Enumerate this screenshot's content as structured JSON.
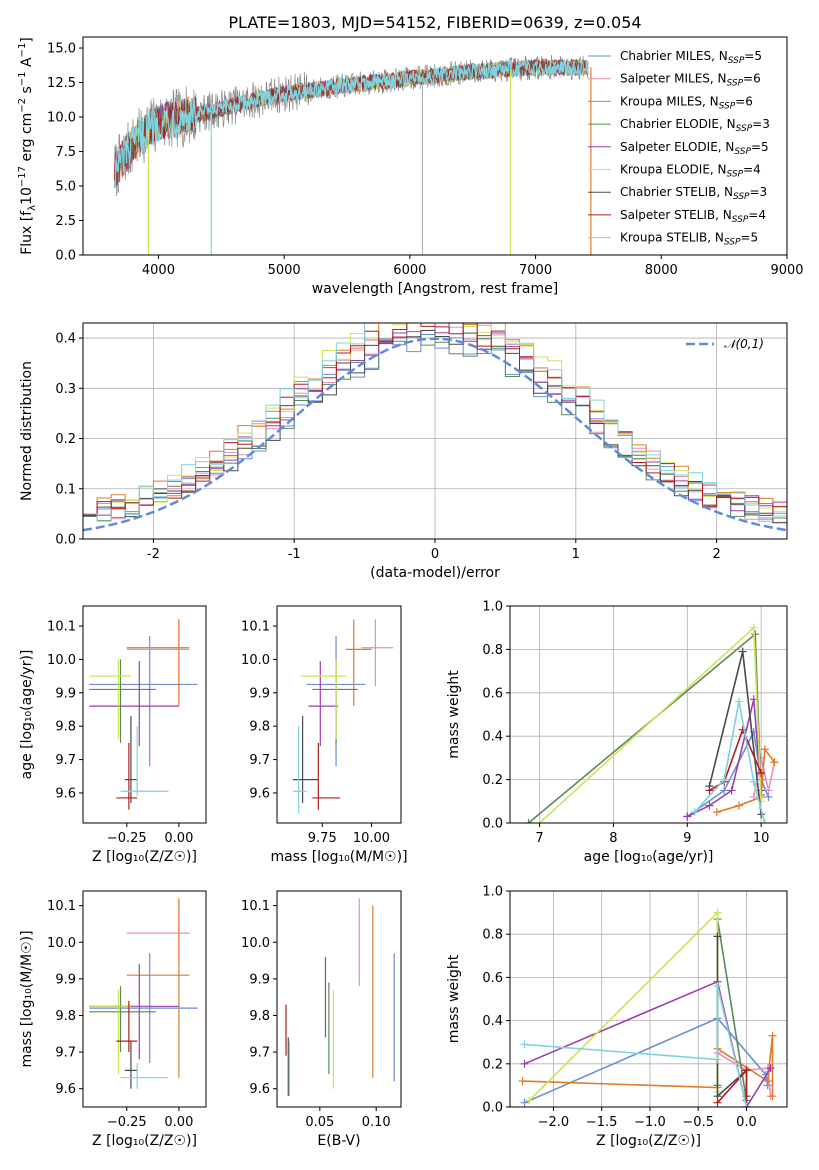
{
  "figure": {
    "title": "PLATE=1803, MJD=54152, FIBERID=0639, z=0.054"
  },
  "models": [
    {
      "name": "Chabrier MILES, N",
      "sub": "SSP",
      "n": "=5",
      "color": "#6b8ed6"
    },
    {
      "name": "Salpeter MILES, N",
      "sub": "SSP",
      "n": "=6",
      "color": "#e58fbf"
    },
    {
      "name": "Kroupa MILES, N",
      "sub": "SSP",
      "n": "=6",
      "color": "#e07b2a"
    },
    {
      "name": "Chabrier ELODIE, N",
      "sub": "SSP",
      "n": "=3",
      "color": "#5a8a5a"
    },
    {
      "name": "Salpeter ELODIE, N",
      "sub": "SSP",
      "n": "=5",
      "color": "#9a3fb0"
    },
    {
      "name": "Kroupa ELODIE, N",
      "sub": "SSP",
      "n": "=4",
      "color": "#cfe35a"
    },
    {
      "name": "Chabrier STELIB, N",
      "sub": "SSP",
      "n": "=3",
      "color": "#4a4a4a"
    },
    {
      "name": "Salpeter STELIB, N",
      "sub": "SSP",
      "n": "=4",
      "color": "#b01e1e"
    },
    {
      "name": "Kroupa STELIB, N",
      "sub": "SSP",
      "n": "=5",
      "color": "#7fd3de"
    }
  ],
  "chart_data": [
    {
      "id": "spectrum",
      "type": "line",
      "title": "PLATE=1803, MJD=54152, FIBERID=0639, z=0.054",
      "xlabel": "wavelength [Angstrom, rest frame]",
      "ylabel_parts": [
        "Flux [f",
        "λ",
        "10",
        "−17",
        " erg cm",
        "−2",
        " s",
        "−1",
        " A",
        "−1",
        "]"
      ],
      "xlim": [
        3400,
        9000
      ],
      "ylim": [
        0,
        15.8
      ],
      "xticks": [
        4000,
        5000,
        6000,
        7000,
        8000,
        9000
      ],
      "yticks": [
        0.0,
        2.5,
        5.0,
        7.5,
        10.0,
        12.5,
        15.0
      ],
      "ytick_labels": [
        "0.0",
        "2.5",
        "5.0",
        "7.5",
        "10.0",
        "12.5",
        "15.0"
      ],
      "continuum": [
        [
          3650,
          6.0
        ],
        [
          3700,
          6.8
        ],
        [
          3800,
          8.0
        ],
        [
          3900,
          9.0
        ],
        [
          4000,
          9.6
        ],
        [
          4200,
          10.0
        ],
        [
          4500,
          10.6
        ],
        [
          4800,
          11.3
        ],
        [
          5000,
          11.7
        ],
        [
          5500,
          12.3
        ],
        [
          6000,
          12.8
        ],
        [
          6500,
          13.3
        ],
        [
          7000,
          13.6
        ],
        [
          7400,
          13.6
        ]
      ],
      "spikes": [
        [
          3920,
          0.0
        ],
        [
          4420,
          0.0
        ],
        [
          6800,
          0.0
        ],
        [
          7440,
          0.0
        ]
      ],
      "legend_loc": "upper right",
      "grid": false
    },
    {
      "id": "residuals",
      "type": "histogram",
      "xlabel": "(data-model)/error",
      "ylabel": "Normed distribution",
      "xlim": [
        -2.5,
        2.5
      ],
      "ylim": [
        0,
        0.43
      ],
      "xticks": [
        -2,
        -1,
        0,
        1,
        2
      ],
      "yticks": [
        0.0,
        0.1,
        0.2,
        0.3,
        0.4
      ],
      "ytick_labels": [
        "0.0",
        "0.1",
        "0.2",
        "0.3",
        "0.4"
      ],
      "bin_width": 0.1,
      "reference_curve": {
        "name": "𝒩(0,1)",
        "mu": 0,
        "sigma": 1,
        "color": "#5f8bdc"
      },
      "legend_loc": "upper right",
      "grid": true
    },
    {
      "id": "age-vs-Z",
      "type": "errorbar",
      "xlabel": "Z [log₁₀(Z/Z☉)]",
      "ylabel": "age  [log₁₀(age/yr)]",
      "xlim": [
        -0.46,
        0.13
      ],
      "ylim": [
        9.51,
        10.16
      ],
      "xticks": [
        -0.25,
        0.0
      ],
      "xtick_labels": [
        "−0.25",
        "0.00"
      ],
      "yticks": [
        9.6,
        9.7,
        9.8,
        9.9,
        10.0,
        10.1
      ],
      "ytick_labels": [
        "9.6",
        "9.7",
        "9.8",
        "9.9",
        "10.0",
        "10.1"
      ],
      "points": [
        {
          "model": 0,
          "x": -0.14,
          "xlo": -0.43,
          "xhi": 0.09,
          "y": 9.925,
          "ylo": 9.68,
          "yhi": 10.07
        },
        {
          "model": 1,
          "x": 0.0,
          "xlo": -0.25,
          "xhi": 0.05,
          "y": 10.03,
          "ylo": 9.88,
          "yhi": 10.12
        },
        {
          "model": 2,
          "x": 0.0,
          "xlo": -0.25,
          "xhi": 0.05,
          "y": 10.035,
          "ylo": 9.86,
          "yhi": 10.12
        },
        {
          "model": 3,
          "x": -0.28,
          "xlo": -0.43,
          "xhi": -0.11,
          "y": 9.91,
          "ylo": 9.75,
          "yhi": 10.0
        },
        {
          "model": 4,
          "x": -0.19,
          "xlo": -0.43,
          "xhi": 0.0,
          "y": 9.86,
          "ylo": 9.74,
          "yhi": 9.995
        },
        {
          "model": 5,
          "x": -0.29,
          "xlo": -0.43,
          "xhi": -0.23,
          "y": 9.95,
          "ylo": 9.76,
          "yhi": 10.0
        },
        {
          "model": 6,
          "x": -0.23,
          "xlo": -0.26,
          "xhi": -0.2,
          "y": 9.64,
          "ylo": 9.57,
          "yhi": 9.83
        },
        {
          "model": 7,
          "x": -0.24,
          "xlo": -0.3,
          "xhi": -0.2,
          "y": 9.585,
          "ylo": 9.55,
          "yhi": 9.75
        },
        {
          "model": 8,
          "x": -0.2,
          "xlo": -0.28,
          "xhi": -0.05,
          "y": 9.605,
          "ylo": 9.59,
          "yhi": 9.8
        }
      ]
    },
    {
      "id": "age-vs-mass",
      "type": "errorbar",
      "xlabel": "mass [log₁₀(M/M☉)]",
      "ylabel": "",
      "xlim": [
        9.52,
        10.15
      ],
      "ylim": [
        9.51,
        10.16
      ],
      "xticks": [
        9.75,
        10.0
      ],
      "xtick_labels": [
        "9.75",
        "10.00"
      ],
      "yticks": [
        9.6,
        9.7,
        9.8,
        9.9,
        10.0,
        10.1
      ],
      "ytick_labels": [
        "9.6",
        "9.7",
        "9.8",
        "9.9",
        "10.0",
        "10.1"
      ],
      "points": [
        {
          "model": 0,
          "x": 9.82,
          "xlo": 9.67,
          "xhi": 9.97,
          "y": 9.925,
          "ylo": 9.68,
          "yhi": 10.07
        },
        {
          "model": 1,
          "x": 10.02,
          "xlo": 9.95,
          "xhi": 10.11,
          "y": 10.035,
          "ylo": 9.92,
          "yhi": 10.12
        },
        {
          "model": 2,
          "x": 9.91,
          "xlo": 9.87,
          "xhi": 10.0,
          "y": 10.03,
          "ylo": 9.86,
          "yhi": 10.12
        },
        {
          "model": 3,
          "x": 9.82,
          "xlo": 9.7,
          "xhi": 9.93,
          "y": 9.91,
          "ylo": 9.75,
          "yhi": 10.0
        },
        {
          "model": 4,
          "x": 9.74,
          "xlo": 9.68,
          "xhi": 9.83,
          "y": 9.86,
          "ylo": 9.74,
          "yhi": 9.995
        },
        {
          "model": 5,
          "x": 9.82,
          "xlo": 9.64,
          "xhi": 9.87,
          "y": 9.95,
          "ylo": 9.76,
          "yhi": 10.0
        },
        {
          "model": 6,
          "x": 9.65,
          "xlo": 9.6,
          "xhi": 9.73,
          "y": 9.64,
          "ylo": 9.57,
          "yhi": 9.83
        },
        {
          "model": 7,
          "x": 9.73,
          "xlo": 9.7,
          "xhi": 9.84,
          "y": 9.585,
          "ylo": 9.55,
          "yhi": 9.75
        },
        {
          "model": 8,
          "x": 9.63,
          "xlo": 9.6,
          "xhi": 9.67,
          "y": 9.605,
          "ylo": 9.54,
          "yhi": 9.8
        }
      ]
    },
    {
      "id": "weight-vs-age",
      "type": "line",
      "xlabel": "age  [log₁₀(age/yr)]",
      "ylabel": "mass weight",
      "xlim": [
        6.6,
        10.35
      ],
      "ylim": [
        0,
        1.0
      ],
      "xticks": [
        7,
        8,
        9,
        10
      ],
      "yticks": [
        0.0,
        0.2,
        0.4,
        0.6,
        0.8,
        1.0
      ],
      "ytick_labels": [
        "0.0",
        "0.2",
        "0.4",
        "0.6",
        "0.8",
        "1.0"
      ],
      "grid": true,
      "series": [
        {
          "model": 0,
          "points": [
            [
              9.0,
              0.03
            ],
            [
              9.5,
              0.15
            ],
            [
              9.9,
              0.42
            ],
            [
              10.0,
              0.2
            ],
            [
              10.1,
              0.12
            ]
          ]
        },
        {
          "model": 1,
          "points": [
            [
              9.9,
              0.12
            ],
            [
              10.0,
              0.3
            ],
            [
              10.1,
              0.15
            ],
            [
              10.18,
              0.28
            ]
          ]
        },
        {
          "model": 2,
          "points": [
            [
              9.4,
              0.05
            ],
            [
              9.7,
              0.08
            ],
            [
              10.0,
              0.12
            ],
            [
              10.05,
              0.34
            ],
            [
              10.18,
              0.28
            ]
          ]
        },
        {
          "model": 3,
          "points": [
            [
              6.85,
              0.0
            ],
            [
              9.92,
              0.87
            ],
            [
              10.0,
              0.13
            ]
          ]
        },
        {
          "model": 4,
          "points": [
            [
              9.0,
              0.03
            ],
            [
              9.3,
              0.08
            ],
            [
              9.6,
              0.15
            ],
            [
              9.9,
              0.57
            ],
            [
              10.0,
              0.15
            ]
          ]
        },
        {
          "model": 5,
          "points": [
            [
              7.0,
              0.0
            ],
            [
              9.9,
              0.9
            ],
            [
              10.0,
              0.1
            ]
          ]
        },
        {
          "model": 6,
          "points": [
            [
              9.3,
              0.17
            ],
            [
              9.75,
              0.79
            ],
            [
              10.0,
              0.04
            ]
          ]
        },
        {
          "model": 7,
          "points": [
            [
              9.3,
              0.15
            ],
            [
              9.5,
              0.19
            ],
            [
              9.75,
              0.43
            ],
            [
              10.0,
              0.23
            ]
          ]
        },
        {
          "model": 8,
          "points": [
            [
              9.1,
              0.05
            ],
            [
              9.5,
              0.2
            ],
            [
              9.7,
              0.56
            ],
            [
              9.9,
              0.19
            ],
            [
              10.05,
              0.0
            ]
          ]
        }
      ]
    },
    {
      "id": "mass-vs-Z",
      "type": "errorbar",
      "xlabel": "Z [log₁₀(Z/Z☉)]",
      "ylabel": "mass [log₁₀(M/M☉)]",
      "xlim": [
        -0.46,
        0.13
      ],
      "ylim": [
        9.55,
        10.14
      ],
      "xticks": [
        -0.25,
        0.0
      ],
      "xtick_labels": [
        "−0.25",
        "0.00"
      ],
      "yticks": [
        9.6,
        9.7,
        9.8,
        9.9,
        10.0,
        10.1
      ],
      "ytick_labels": [
        "9.6",
        "9.7",
        "9.8",
        "9.9",
        "10.0",
        "10.1"
      ],
      "points": [
        {
          "model": 0,
          "x": -0.14,
          "xlo": -0.43,
          "xhi": 0.09,
          "y": 9.82,
          "ylo": 9.67,
          "yhi": 9.97
        },
        {
          "model": 1,
          "x": 0.0,
          "xlo": -0.25,
          "xhi": 0.05,
          "y": 10.025,
          "ylo": 9.95,
          "yhi": 10.12
        },
        {
          "model": 2,
          "x": 0.0,
          "xlo": -0.25,
          "xhi": 0.05,
          "y": 9.91,
          "ylo": 9.63,
          "yhi": 10.12
        },
        {
          "model": 3,
          "x": -0.28,
          "xlo": -0.43,
          "xhi": -0.11,
          "y": 9.81,
          "ylo": 9.7,
          "yhi": 9.88
        },
        {
          "model": 4,
          "x": -0.19,
          "xlo": -0.43,
          "xhi": 0.0,
          "y": 9.825,
          "ylo": 9.68,
          "yhi": 9.94
        },
        {
          "model": 5,
          "x": -0.29,
          "xlo": -0.43,
          "xhi": -0.23,
          "y": 9.825,
          "ylo": 9.64,
          "yhi": 9.87
        },
        {
          "model": 6,
          "x": -0.23,
          "xlo": -0.26,
          "xhi": -0.2,
          "y": 9.65,
          "ylo": 9.6,
          "yhi": 9.73
        },
        {
          "model": 7,
          "x": -0.24,
          "xlo": -0.3,
          "xhi": -0.2,
          "y": 9.73,
          "ylo": 9.7,
          "yhi": 9.84
        },
        {
          "model": 8,
          "x": -0.2,
          "xlo": -0.28,
          "xhi": -0.05,
          "y": 9.63,
          "ylo": 9.6,
          "yhi": 9.67
        }
      ]
    },
    {
      "id": "mass-vs-ebv",
      "type": "errorbar",
      "xlabel": "E(B-V)",
      "ylabel": "",
      "xlim": [
        0.012,
        0.122
      ],
      "ylim": [
        9.55,
        10.14
      ],
      "xticks": [
        0.05,
        0.1
      ],
      "xtick_labels": [
        "0.05",
        "0.10"
      ],
      "yticks": [
        9.6,
        9.7,
        9.8,
        9.9,
        10.0,
        10.1
      ],
      "ytick_labels": [
        "9.6",
        "9.7",
        "9.8",
        "9.9",
        "10.0",
        "10.1"
      ],
      "points": [
        {
          "model": 0,
          "x": 0.116,
          "y": 9.82,
          "ylo": 9.62,
          "yhi": 9.97
        },
        {
          "model": 1,
          "x": 0.085,
          "y": 10.02,
          "ylo": 9.88,
          "yhi": 10.12
        },
        {
          "model": 2,
          "x": 0.097,
          "y": 9.91,
          "ylo": 9.63,
          "yhi": 10.1
        },
        {
          "model": 3,
          "x": 0.058,
          "y": 9.8,
          "ylo": 9.64,
          "yhi": 9.89
        },
        {
          "model": 4,
          "x": 0.055,
          "y": 9.88,
          "ylo": 9.74,
          "yhi": 9.96
        },
        {
          "model": 5,
          "x": 0.062,
          "y": 9.75,
          "ylo": 9.6,
          "yhi": 9.87
        },
        {
          "model": 6,
          "x": 0.022,
          "y": 9.65,
          "ylo": 9.58,
          "yhi": 9.74
        },
        {
          "model": 7,
          "x": 0.02,
          "y": 9.75,
          "ylo": 9.69,
          "yhi": 9.83
        },
        {
          "model": 8,
          "x": 0.023,
          "y": 9.64,
          "ylo": 9.58,
          "yhi": 9.73
        }
      ]
    },
    {
      "id": "weight-vs-Z",
      "type": "line",
      "xlabel": "Z [log₁₀(Z/Z☉)]",
      "ylabel": "mass weight",
      "xlim": [
        -2.45,
        0.42
      ],
      "ylim": [
        0,
        1.0
      ],
      "xticks": [
        -2.0,
        -1.5,
        -1.0,
        -0.5,
        0.0
      ],
      "xtick_labels": [
        "−2.0",
        "−1.5",
        "−1.0",
        "−0.5",
        "0.0"
      ],
      "yticks": [
        0.0,
        0.2,
        0.4,
        0.6,
        0.8,
        1.0
      ],
      "ytick_labels": [
        "0.0",
        "0.2",
        "0.4",
        "0.6",
        "0.8",
        "1.0"
      ],
      "grid": true,
      "series": [
        {
          "model": 0,
          "points": [
            [
              -2.3,
              0.02
            ],
            [
              -0.3,
              0.41
            ],
            [
              0.2,
              0.15
            ],
            [
              0.22,
              0.1
            ]
          ]
        },
        {
          "model": 1,
          "points": [
            [
              -0.3,
              0.25
            ],
            [
              0.0,
              0.17
            ],
            [
              0.22,
              0.18
            ],
            [
              0.25,
              0.05
            ]
          ]
        },
        {
          "model": 2,
          "points": [
            [
              -2.32,
              0.12
            ],
            [
              -0.3,
              0.09
            ],
            [
              -0.3,
              0.27
            ],
            [
              0.22,
              0.12
            ],
            [
              0.27,
              0.33
            ],
            [
              0.27,
              0.05
            ]
          ]
        },
        {
          "model": 3,
          "points": [
            [
              -0.3,
              0.1
            ],
            [
              -0.3,
              0.87
            ],
            [
              0.0,
              0.03
            ]
          ]
        },
        {
          "model": 4,
          "points": [
            [
              -2.3,
              0.2
            ],
            [
              -0.3,
              0.58
            ],
            [
              0.0,
              0.0
            ],
            [
              0.25,
              0.18
            ]
          ]
        },
        {
          "model": 5,
          "points": [
            [
              -2.25,
              0.03
            ],
            [
              -0.3,
              0.9
            ],
            [
              -0.3,
              0.07
            ]
          ]
        },
        {
          "model": 6,
          "points": [
            [
              -0.3,
              0.79
            ],
            [
              -0.3,
              0.05
            ],
            [
              0.0,
              0.17
            ],
            [
              0.0,
              0.0
            ]
          ]
        },
        {
          "model": 7,
          "points": [
            [
              -0.3,
              0.02
            ],
            [
              0.0,
              0.17
            ],
            [
              0.0,
              0.05
            ]
          ]
        },
        {
          "model": 8,
          "points": [
            [
              -2.3,
              0.29
            ],
            [
              -0.3,
              0.22
            ],
            [
              -0.3,
              0.56
            ],
            [
              0.0,
              0.0
            ]
          ]
        }
      ]
    }
  ]
}
